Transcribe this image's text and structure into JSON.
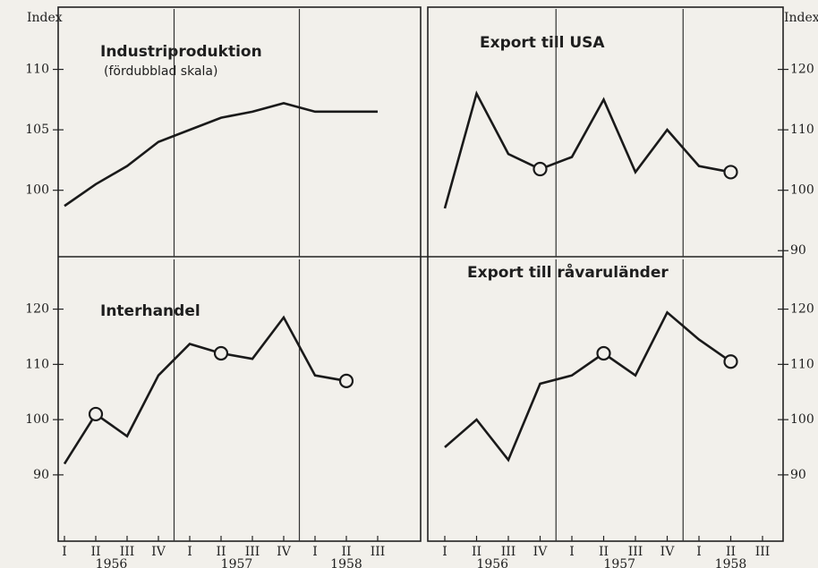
{
  "axis_label": "Index",
  "chart_data": [
    {
      "type": "line",
      "title": "Industriproduktion",
      "subtitle": "(fördubblad skala)",
      "panel": "top-left",
      "values": [
        98.7,
        100.5,
        102,
        104,
        105,
        106,
        106.5,
        107.2,
        106.5,
        106.5,
        106.5
      ],
      "ylim": [
        94.5,
        115
      ],
      "yticks": [
        100,
        105,
        110
      ],
      "tick_side": "left",
      "markers": []
    },
    {
      "type": "line",
      "title": "Export till USA",
      "panel": "top-right",
      "values": [
        97,
        116,
        106,
        103.5,
        105.5,
        115,
        103,
        110,
        104,
        103,
        null
      ],
      "ylim": [
        89,
        130
      ],
      "yticks": [
        90,
        100,
        110,
        120
      ],
      "tick_side": "right",
      "markers": [
        3,
        9
      ]
    },
    {
      "type": "line",
      "title": "Interhandel",
      "panel": "bottom-left",
      "categories": [
        "I",
        "II",
        "III",
        "IV",
        "I",
        "II",
        "III",
        "IV",
        "I",
        "II",
        "III"
      ],
      "years": [
        "1956",
        "1957",
        "1958"
      ],
      "values": [
        92,
        101,
        97,
        108,
        113.7,
        112,
        111,
        118.5,
        108,
        107,
        null
      ],
      "ylim": [
        78,
        129
      ],
      "yticks": [
        90,
        100,
        110,
        120
      ],
      "tick_side": "left",
      "markers": [
        1,
        5,
        9
      ]
    },
    {
      "type": "line",
      "title": "Export till råvaruländer",
      "panel": "bottom-right",
      "categories": [
        "I",
        "II",
        "III",
        "IV",
        "I",
        "II",
        "III",
        "IV",
        "I",
        "II",
        "III"
      ],
      "years": [
        "1956",
        "1957",
        "1958"
      ],
      "values": [
        95,
        100,
        92.7,
        106.5,
        108,
        112,
        108,
        119.4,
        114.5,
        110.5,
        null
      ],
      "ylim": [
        78,
        129
      ],
      "yticks": [
        90,
        100,
        110,
        120
      ],
      "tick_side": "right",
      "markers": [
        5,
        9
      ]
    }
  ]
}
